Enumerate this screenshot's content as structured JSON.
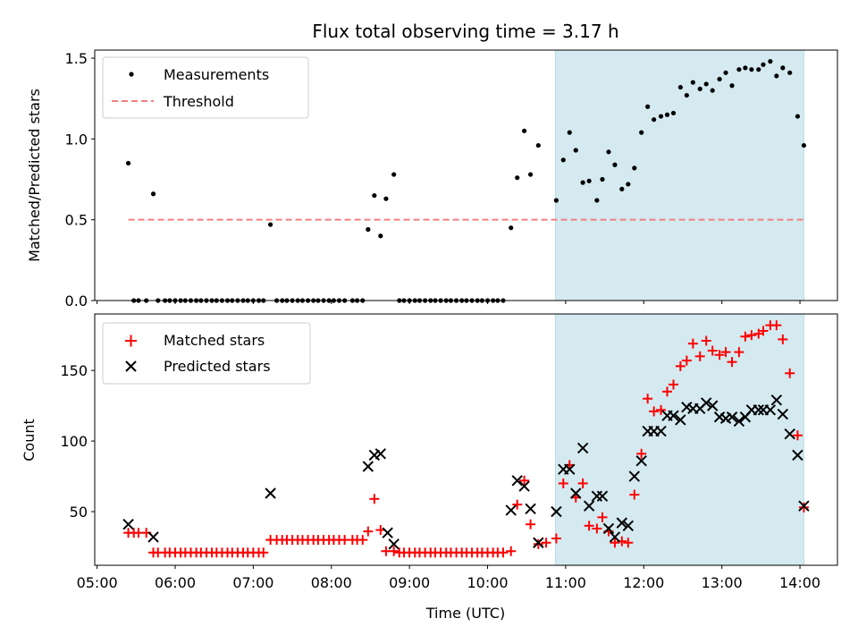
{
  "chart_data": {
    "title": "Flux total observing time = 3.17 h",
    "xlabel": "Time (UTC)",
    "xlim_hours": [
      4.97,
      14.48
    ],
    "x_ticks": [
      {
        "value": 5,
        "label": "05:00"
      },
      {
        "value": 6,
        "label": "06:00"
      },
      {
        "value": 7,
        "label": "07:00"
      },
      {
        "value": 8,
        "label": "08:00"
      },
      {
        "value": 9,
        "label": "09:00"
      },
      {
        "value": 10,
        "label": "10:00"
      },
      {
        "value": 11,
        "label": "11:00"
      },
      {
        "value": 12,
        "label": "12:00"
      },
      {
        "value": 13,
        "label": "13:00"
      },
      {
        "value": 14,
        "label": "14:00"
      }
    ],
    "shaded_span": {
      "x0": 10.87,
      "x1": 14.05,
      "color": "#d4eaf0"
    },
    "top": {
      "type": "scatter",
      "ylabel": "Matched/Predicted stars",
      "ylim": [
        0,
        1.55
      ],
      "y_ticks": [
        {
          "value": 0,
          "label": "0.0"
        },
        {
          "value": 0.5,
          "label": "0.5"
        },
        {
          "value": 1.0,
          "label": "1.0"
        },
        {
          "value": 1.5,
          "label": "1.5"
        }
      ],
      "legend": [
        {
          "label": "Measurements",
          "marker": "dot",
          "color": "#000000"
        },
        {
          "label": "Threshold",
          "marker": "dashed-line",
          "color": "#f08080"
        }
      ],
      "threshold": {
        "value": 0.5,
        "x0": 5.4,
        "x1": 14.05,
        "color": "#f08080"
      },
      "points": [
        [
          5.4,
          0.85
        ],
        [
          5.47,
          0
        ],
        [
          5.53,
          0
        ],
        [
          5.63,
          0
        ],
        [
          5.72,
          0.66
        ],
        [
          5.78,
          0
        ],
        [
          5.87,
          0
        ],
        [
          5.93,
          0
        ],
        [
          6.0,
          0
        ],
        [
          6.07,
          0
        ],
        [
          6.13,
          0
        ],
        [
          6.2,
          0
        ],
        [
          6.27,
          0
        ],
        [
          6.33,
          0
        ],
        [
          6.4,
          0
        ],
        [
          6.47,
          0
        ],
        [
          6.53,
          0
        ],
        [
          6.6,
          0
        ],
        [
          6.67,
          0
        ],
        [
          6.73,
          0
        ],
        [
          6.8,
          0
        ],
        [
          6.87,
          0
        ],
        [
          6.93,
          0
        ],
        [
          7.0,
          0
        ],
        [
          7.07,
          0
        ],
        [
          7.13,
          0
        ],
        [
          7.22,
          0.47
        ],
        [
          7.3,
          0
        ],
        [
          7.37,
          0
        ],
        [
          7.43,
          0
        ],
        [
          7.5,
          0
        ],
        [
          7.57,
          0
        ],
        [
          7.63,
          0
        ],
        [
          7.7,
          0
        ],
        [
          7.77,
          0
        ],
        [
          7.83,
          0
        ],
        [
          7.9,
          0
        ],
        [
          7.97,
          0
        ],
        [
          8.03,
          0
        ],
        [
          8.1,
          0
        ],
        [
          8.17,
          0
        ],
        [
          8.27,
          0
        ],
        [
          8.33,
          0
        ],
        [
          8.4,
          0
        ],
        [
          8.47,
          0.44
        ],
        [
          8.55,
          0.65
        ],
        [
          8.63,
          0.4
        ],
        [
          8.7,
          0.63
        ],
        [
          8.8,
          0.78
        ],
        [
          8.87,
          0
        ],
        [
          8.93,
          0
        ],
        [
          9.0,
          0
        ],
        [
          9.07,
          0
        ],
        [
          9.13,
          0
        ],
        [
          9.2,
          0
        ],
        [
          9.27,
          0
        ],
        [
          9.33,
          0
        ],
        [
          9.4,
          0
        ],
        [
          9.47,
          0
        ],
        [
          9.53,
          0
        ],
        [
          9.6,
          0
        ],
        [
          9.67,
          0
        ],
        [
          9.73,
          0
        ],
        [
          9.8,
          0
        ],
        [
          9.87,
          0
        ],
        [
          9.93,
          0
        ],
        [
          10.0,
          0
        ],
        [
          10.07,
          0
        ],
        [
          10.13,
          0
        ],
        [
          10.2,
          0
        ],
        [
          10.3,
          0.45
        ],
        [
          10.38,
          0.76
        ],
        [
          10.47,
          1.05
        ],
        [
          10.55,
          0.78
        ],
        [
          10.65,
          0.96
        ],
        [
          10.88,
          0.62
        ],
        [
          10.97,
          0.87
        ],
        [
          11.05,
          1.04
        ],
        [
          11.13,
          0.93
        ],
        [
          11.22,
          0.73
        ],
        [
          11.3,
          0.74
        ],
        [
          11.4,
          0.62
        ],
        [
          11.47,
          0.75
        ],
        [
          11.55,
          0.92
        ],
        [
          11.63,
          0.84
        ],
        [
          11.72,
          0.69
        ],
        [
          11.8,
          0.72
        ],
        [
          11.88,
          0.82
        ],
        [
          11.97,
          1.04
        ],
        [
          12.05,
          1.2
        ],
        [
          12.13,
          1.12
        ],
        [
          12.22,
          1.14
        ],
        [
          12.3,
          1.15
        ],
        [
          12.38,
          1.16
        ],
        [
          12.47,
          1.32
        ],
        [
          12.55,
          1.27
        ],
        [
          12.63,
          1.35
        ],
        [
          12.72,
          1.31
        ],
        [
          12.8,
          1.34
        ],
        [
          12.88,
          1.3
        ],
        [
          12.97,
          1.37
        ],
        [
          13.05,
          1.41
        ],
        [
          13.13,
          1.33
        ],
        [
          13.22,
          1.43
        ],
        [
          13.3,
          1.44
        ],
        [
          13.38,
          1.43
        ],
        [
          13.47,
          1.43
        ],
        [
          13.53,
          1.46
        ],
        [
          13.62,
          1.48
        ],
        [
          13.7,
          1.39
        ],
        [
          13.78,
          1.44
        ],
        [
          13.87,
          1.41
        ],
        [
          13.97,
          1.14
        ],
        [
          14.05,
          0.96
        ]
      ]
    },
    "bottom": {
      "type": "scatter",
      "ylabel": "Count",
      "ylim": [
        12,
        190
      ],
      "y_ticks": [
        {
          "value": 50,
          "label": "50"
        },
        {
          "value": 100,
          "label": "100"
        },
        {
          "value": 150,
          "label": "150"
        }
      ],
      "legend": [
        {
          "label": "Matched stars",
          "marker": "plus",
          "color": "#ff0000"
        },
        {
          "label": "Predicted stars",
          "marker": "x",
          "color": "#000000"
        }
      ],
      "matched": [
        [
          5.4,
          35
        ],
        [
          5.47,
          35
        ],
        [
          5.53,
          35
        ],
        [
          5.63,
          35
        ],
        [
          5.72,
          21
        ],
        [
          5.78,
          21
        ],
        [
          5.87,
          21
        ],
        [
          5.93,
          21
        ],
        [
          6.0,
          21
        ],
        [
          6.07,
          21
        ],
        [
          6.13,
          21
        ],
        [
          6.2,
          21
        ],
        [
          6.27,
          21
        ],
        [
          6.33,
          21
        ],
        [
          6.4,
          21
        ],
        [
          6.47,
          21
        ],
        [
          6.53,
          21
        ],
        [
          6.6,
          21
        ],
        [
          6.67,
          21
        ],
        [
          6.73,
          21
        ],
        [
          6.8,
          21
        ],
        [
          6.87,
          21
        ],
        [
          6.93,
          21
        ],
        [
          7.0,
          21
        ],
        [
          7.07,
          21
        ],
        [
          7.13,
          21
        ],
        [
          7.22,
          30
        ],
        [
          7.3,
          30
        ],
        [
          7.37,
          30
        ],
        [
          7.43,
          30
        ],
        [
          7.5,
          30
        ],
        [
          7.57,
          30
        ],
        [
          7.63,
          30
        ],
        [
          7.7,
          30
        ],
        [
          7.77,
          30
        ],
        [
          7.83,
          30
        ],
        [
          7.9,
          30
        ],
        [
          7.97,
          30
        ],
        [
          8.03,
          30
        ],
        [
          8.1,
          30
        ],
        [
          8.17,
          30
        ],
        [
          8.27,
          30
        ],
        [
          8.33,
          30
        ],
        [
          8.4,
          30
        ],
        [
          8.47,
          36
        ],
        [
          8.55,
          59
        ],
        [
          8.63,
          37
        ],
        [
          8.7,
          22
        ],
        [
          8.8,
          22
        ],
        [
          8.87,
          21
        ],
        [
          8.93,
          21
        ],
        [
          9.0,
          21
        ],
        [
          9.07,
          21
        ],
        [
          9.13,
          21
        ],
        [
          9.2,
          21
        ],
        [
          9.27,
          21
        ],
        [
          9.33,
          21
        ],
        [
          9.4,
          21
        ],
        [
          9.47,
          21
        ],
        [
          9.53,
          21
        ],
        [
          9.6,
          21
        ],
        [
          9.67,
          21
        ],
        [
          9.73,
          21
        ],
        [
          9.8,
          21
        ],
        [
          9.87,
          21
        ],
        [
          9.93,
          21
        ],
        [
          10.0,
          21
        ],
        [
          10.07,
          21
        ],
        [
          10.13,
          21
        ],
        [
          10.2,
          21
        ],
        [
          10.3,
          22
        ],
        [
          10.38,
          55
        ],
        [
          10.47,
          72
        ],
        [
          10.55,
          41
        ],
        [
          10.65,
          27
        ],
        [
          10.75,
          28
        ],
        [
          10.88,
          31
        ],
        [
          10.97,
          70
        ],
        [
          11.05,
          83
        ],
        [
          11.13,
          60
        ],
        [
          11.22,
          70
        ],
        [
          11.3,
          40
        ],
        [
          11.4,
          38
        ],
        [
          11.47,
          46
        ],
        [
          11.55,
          36
        ],
        [
          11.63,
          28
        ],
        [
          11.72,
          29
        ],
        [
          11.8,
          28
        ],
        [
          11.88,
          62
        ],
        [
          11.97,
          91
        ],
        [
          12.05,
          130
        ],
        [
          12.13,
          121
        ],
        [
          12.22,
          122
        ],
        [
          12.3,
          135
        ],
        [
          12.38,
          140
        ],
        [
          12.47,
          153
        ],
        [
          12.55,
          157
        ],
        [
          12.63,
          169
        ],
        [
          12.72,
          160
        ],
        [
          12.8,
          171
        ],
        [
          12.88,
          164
        ],
        [
          12.97,
          161
        ],
        [
          13.05,
          163
        ],
        [
          13.13,
          156
        ],
        [
          13.22,
          163
        ],
        [
          13.3,
          174
        ],
        [
          13.38,
          175
        ],
        [
          13.47,
          176
        ],
        [
          13.53,
          178
        ],
        [
          13.62,
          182
        ],
        [
          13.7,
          182
        ],
        [
          13.78,
          172
        ],
        [
          13.87,
          148
        ],
        [
          13.97,
          104
        ],
        [
          14.05,
          53
        ]
      ],
      "predicted": [
        [
          5.4,
          41
        ],
        [
          5.72,
          32
        ],
        [
          7.22,
          63
        ],
        [
          8.47,
          82
        ],
        [
          8.55,
          90
        ],
        [
          8.63,
          91
        ],
        [
          8.72,
          35
        ],
        [
          8.8,
          27
        ],
        [
          10.3,
          51
        ],
        [
          10.38,
          72
        ],
        [
          10.47,
          68
        ],
        [
          10.55,
          52
        ],
        [
          10.65,
          28
        ],
        [
          10.88,
          50
        ],
        [
          10.97,
          80
        ],
        [
          11.05,
          80
        ],
        [
          11.13,
          63
        ],
        [
          11.22,
          95
        ],
        [
          11.3,
          54
        ],
        [
          11.4,
          61
        ],
        [
          11.47,
          61
        ],
        [
          11.55,
          38
        ],
        [
          11.63,
          32
        ],
        [
          11.72,
          42
        ],
        [
          11.8,
          40
        ],
        [
          11.88,
          75
        ],
        [
          11.97,
          86
        ],
        [
          12.05,
          107
        ],
        [
          12.13,
          107
        ],
        [
          12.22,
          107
        ],
        [
          12.3,
          118
        ],
        [
          12.38,
          118
        ],
        [
          12.47,
          115
        ],
        [
          12.55,
          124
        ],
        [
          12.63,
          123
        ],
        [
          12.72,
          123
        ],
        [
          12.8,
          127
        ],
        [
          12.88,
          125
        ],
        [
          12.97,
          117
        ],
        [
          13.05,
          116
        ],
        [
          13.13,
          117
        ],
        [
          13.22,
          114
        ],
        [
          13.3,
          117
        ],
        [
          13.38,
          122
        ],
        [
          13.47,
          122
        ],
        [
          13.53,
          122
        ],
        [
          13.62,
          122
        ],
        [
          13.7,
          129
        ],
        [
          13.78,
          119
        ],
        [
          13.87,
          105
        ],
        [
          13.97,
          90
        ],
        [
          14.05,
          54
        ]
      ]
    }
  }
}
